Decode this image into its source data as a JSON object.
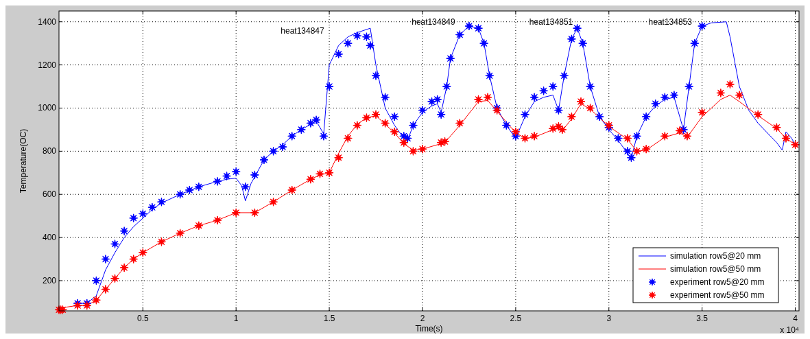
{
  "chart_data": {
    "type": "line",
    "xlabel": "Time(s)",
    "ylabel": "Temperature(OC)",
    "xlim": [
      0.05,
      4.02
    ],
    "xticks": [
      0.5,
      1,
      1.5,
      2,
      2.5,
      3,
      3.5,
      4
    ],
    "ylim": [
      60,
      1450
    ],
    "yticks": [
      200,
      400,
      600,
      800,
      1000,
      1200,
      1400
    ],
    "grid": true,
    "legend": "bottom right",
    "annotations": [
      "heat134847",
      "heat134849",
      "heat134851",
      "heat134853",
      "x 10⁴"
    ],
    "series": [
      {
        "name": "simulation row5@20 mm",
        "color": "#0000ff",
        "x": [
          0.15,
          0.2,
          0.25,
          0.3,
          0.35,
          0.4,
          0.45,
          0.5,
          0.55,
          0.6,
          0.7,
          0.8,
          0.9,
          0.95,
          1.0,
          1.03,
          1.05,
          1.08,
          1.15,
          1.2,
          1.25,
          1.3,
          1.35,
          1.4,
          1.43,
          1.47,
          1.5,
          1.55,
          1.6,
          1.65,
          1.72,
          1.75,
          1.8,
          1.85,
          1.9,
          1.92,
          1.95,
          2.0,
          2.05,
          2.08,
          2.1,
          2.13,
          2.15,
          2.2,
          2.25,
          2.3,
          2.33,
          2.36,
          2.4,
          2.45,
          2.5,
          2.55,
          2.6,
          2.65,
          2.7,
          2.73,
          2.76,
          2.8,
          2.83,
          2.86,
          2.9,
          2.95,
          3.0,
          3.05,
          3.1,
          3.12,
          3.15,
          3.2,
          3.25,
          3.3,
          3.35,
          3.4,
          3.43,
          3.46,
          3.5,
          3.55,
          3.63,
          3.65,
          3.7,
          3.75,
          3.8,
          3.9,
          3.93,
          3.95,
          3.98,
          4.0
        ],
        "values": [
          95,
          95,
          130,
          250,
          330,
          400,
          450,
          490,
          530,
          560,
          600,
          635,
          660,
          670,
          675,
          640,
          570,
          650,
          760,
          800,
          830,
          870,
          900,
          925,
          940,
          880,
          1200,
          1290,
          1330,
          1350,
          1370,
          1200,
          1000,
          920,
          860,
          850,
          920,
          980,
          1010,
          1020,
          980,
          1100,
          1230,
          1340,
          1380,
          1370,
          1300,
          1150,
          1000,
          920,
          860,
          960,
          1030,
          1050,
          1060,
          990,
          1150,
          1320,
          1370,
          1300,
          1100,
          960,
          900,
          850,
          790,
          765,
          870,
          960,
          1010,
          1040,
          1050,
          900,
          1100,
          1300,
          1380,
          1395,
          1400,
          1330,
          1100,
          990,
          930,
          840,
          805,
          890,
          860,
          830
        ]
      },
      {
        "name": "simulation row5@50 mm",
        "color": "#ff0000",
        "x": [
          0.05,
          0.07,
          0.15,
          0.2,
          0.25,
          0.3,
          0.35,
          0.4,
          0.45,
          0.5,
          0.6,
          0.7,
          0.8,
          0.9,
          1.0,
          1.1,
          1.2,
          1.3,
          1.4,
          1.45,
          1.5,
          1.55,
          1.6,
          1.65,
          1.7,
          1.75,
          1.8,
          1.85,
          1.9,
          1.95,
          2.0,
          2.1,
          2.12,
          2.2,
          2.3,
          2.35,
          2.4,
          2.5,
          2.55,
          2.6,
          2.7,
          2.73,
          2.75,
          2.8,
          2.85,
          2.9,
          3.0,
          3.1,
          3.15,
          3.2,
          3.3,
          3.38,
          3.42,
          3.5,
          3.6,
          3.65,
          3.7,
          3.8,
          3.9,
          3.95,
          4.0
        ],
        "values": [
          75,
          75,
          85,
          85,
          110,
          160,
          210,
          260,
          300,
          330,
          380,
          420,
          455,
          480,
          515,
          515,
          565,
          620,
          670,
          690,
          700,
          790,
          870,
          925,
          955,
          965,
          925,
          885,
          835,
          805,
          810,
          835,
          840,
          920,
          1030,
          1035,
          985,
          885,
          860,
          865,
          900,
          905,
          895,
          950,
          1020,
          995,
          915,
          855,
          800,
          805,
          865,
          885,
          865,
          960,
          1040,
          1060,
          1030,
          965,
          905,
          860,
          830
        ]
      },
      {
        "name": "experiment row5@20 mm",
        "type": "scatter",
        "marker": "star",
        "color": "#0000ff",
        "x": [
          0.15,
          0.2,
          0.25,
          0.3,
          0.35,
          0.4,
          0.45,
          0.5,
          0.55,
          0.6,
          0.7,
          0.75,
          0.8,
          0.9,
          0.95,
          1.0,
          1.05,
          1.1,
          1.15,
          1.2,
          1.25,
          1.3,
          1.35,
          1.4,
          1.43,
          1.47,
          1.5,
          1.55,
          1.6,
          1.65,
          1.7,
          1.72,
          1.75,
          1.8,
          1.85,
          1.9,
          1.92,
          1.95,
          2.0,
          2.05,
          2.08,
          2.1,
          2.13,
          2.15,
          2.2,
          2.25,
          2.3,
          2.33,
          2.36,
          2.4,
          2.45,
          2.5,
          2.55,
          2.6,
          2.65,
          2.7,
          2.73,
          2.76,
          2.8,
          2.83,
          2.86,
          2.9,
          2.95,
          3.0,
          3.05,
          3.1,
          3.12,
          3.15,
          3.2,
          3.25,
          3.3,
          3.35,
          3.4,
          3.43,
          3.46,
          3.5
        ],
        "values": [
          95,
          95,
          200,
          300,
          370,
          430,
          490,
          510,
          540,
          565,
          600,
          620,
          635,
          660,
          685,
          705,
          635,
          690,
          760,
          800,
          820,
          870,
          900,
          930,
          945,
          870,
          1100,
          1250,
          1300,
          1335,
          1330,
          1290,
          1150,
          1050,
          960,
          870,
          860,
          920,
          990,
          1030,
          1040,
          970,
          1100,
          1230,
          1340,
          1380,
          1370,
          1300,
          1150,
          1000,
          920,
          870,
          970,
          1050,
          1080,
          1100,
          990,
          1150,
          1320,
          1370,
          1300,
          1100,
          960,
          910,
          860,
          800,
          770,
          870,
          960,
          1020,
          1050,
          1060,
          900,
          1100,
          1300,
          1380
        ]
      },
      {
        "name": "experiment row5@50 mm",
        "type": "scatter",
        "marker": "star",
        "color": "#ff0000",
        "x": [
          0.05,
          0.06,
          0.07,
          0.15,
          0.2,
          0.25,
          0.3,
          0.35,
          0.4,
          0.45,
          0.5,
          0.6,
          0.7,
          0.8,
          0.9,
          1.0,
          1.1,
          1.2,
          1.3,
          1.4,
          1.45,
          1.5,
          1.55,
          1.6,
          1.65,
          1.7,
          1.75,
          1.8,
          1.85,
          1.9,
          1.95,
          2.0,
          2.1,
          2.12,
          2.2,
          2.3,
          2.35,
          2.4,
          2.5,
          2.55,
          2.6,
          2.7,
          2.73,
          2.75,
          2.8,
          2.85,
          2.9,
          3.0,
          3.1,
          3.15,
          3.2,
          3.3,
          3.38,
          3.42,
          3.5,
          3.6,
          3.65,
          3.7,
          3.8,
          3.9,
          3.95,
          4.0
        ],
        "values": [
          65,
          65,
          65,
          85,
          85,
          110,
          160,
          210,
          260,
          300,
          330,
          380,
          420,
          455,
          480,
          515,
          515,
          565,
          620,
          670,
          695,
          700,
          770,
          860,
          920,
          955,
          970,
          930,
          890,
          840,
          800,
          810,
          840,
          845,
          930,
          1040,
          1050,
          990,
          890,
          860,
          870,
          905,
          915,
          900,
          960,
          1030,
          1000,
          920,
          860,
          800,
          810,
          870,
          895,
          870,
          980,
          1070,
          1110,
          1060,
          970,
          910,
          860,
          830
        ]
      }
    ]
  }
}
